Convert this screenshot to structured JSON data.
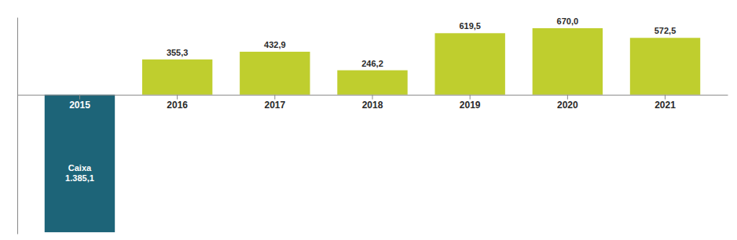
{
  "chart_data": {
    "type": "bar",
    "categories": [
      "2015",
      "2016",
      "2017",
      "2018",
      "2019",
      "2020",
      "2021"
    ],
    "values": [
      -1385.1,
      355.3,
      432.9,
      246.2,
      619.5,
      670.0,
      572.5
    ],
    "value_labels": [
      "Caixa\n1.385,1",
      "355,3",
      "432,9",
      "246,2",
      "619,5",
      "670,0",
      "572,5"
    ],
    "data_labels": true,
    "colors": [
      "#1d6478",
      "#bfce2e",
      "#bfce2e",
      "#bfce2e",
      "#bfce2e",
      "#bfce2e",
      "#bfce2e"
    ],
    "ylim": [
      -1400,
      780
    ],
    "grid": false,
    "tick_labels": "x"
  }
}
